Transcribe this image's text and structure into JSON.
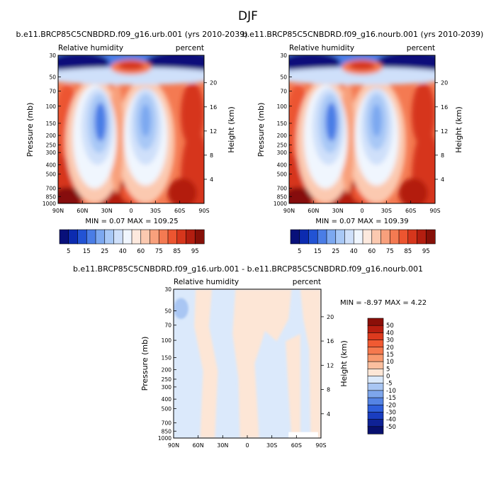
{
  "page": {
    "title": "DJF"
  },
  "chart_data": [
    {
      "type": "heatmap",
      "title": "b.e11.BRCP85C5CNBDRD.f09_g16.urb.001 (yrs 2010-2039)",
      "left_label": "Relative humidity",
      "right_label": "percent",
      "xlabel": "",
      "ylabel": "Pressure (mb)",
      "ylabel_right": "Height (km)",
      "x_ticks": [
        "90N",
        "60N",
        "30N",
        "0",
        "30S",
        "60S",
        "90S"
      ],
      "y_ticks": [
        "30",
        "50",
        "70",
        "100",
        "150",
        "200",
        "250",
        "300",
        "400",
        "500",
        "700",
        "850",
        "1000"
      ],
      "y_ticks_right": [
        "20",
        "16",
        "12",
        "8",
        "4"
      ],
      "stats": "MIN =   0.07  MAX = 109.25",
      "colorbar": {
        "labels": [
          "5",
          "15",
          "25",
          "40",
          "60",
          "75",
          "85",
          "95"
        ],
        "colors": [
          "#08107a",
          "#0c2bb0",
          "#2253d4",
          "#4a7de6",
          "#7ca8f0",
          "#a8c8f6",
          "#cfe0fa",
          "#f0f6fe",
          "#fde9de",
          "#fbc9b0",
          "#f8a07c",
          "#f47a52",
          "#ec5530",
          "#d6361c",
          "#b31e10",
          "#861008"
        ]
      }
    },
    {
      "type": "heatmap",
      "title": "b.e11.BRCP85C5CNBDRD.f09_g16.nourb.001 (yrs 2010-2039)",
      "left_label": "Relative humidity",
      "right_label": "percent",
      "xlabel": "",
      "ylabel": "Pressure (mb)",
      "ylabel_right": "Height (km)",
      "x_ticks": [
        "90N",
        "60N",
        "30N",
        "0",
        "30S",
        "60S",
        "90S"
      ],
      "y_ticks": [
        "30",
        "50",
        "70",
        "100",
        "150",
        "200",
        "250",
        "300",
        "400",
        "500",
        "700",
        "850",
        "1000"
      ],
      "y_ticks_right": [
        "20",
        "16",
        "12",
        "8",
        "4"
      ],
      "stats": "MIN =   0.07  MAX = 109.39",
      "colorbar": {
        "labels": [
          "5",
          "15",
          "25",
          "40",
          "60",
          "75",
          "85",
          "95"
        ],
        "colors": [
          "#08107a",
          "#0c2bb0",
          "#2253d4",
          "#4a7de6",
          "#7ca8f0",
          "#a8c8f6",
          "#cfe0fa",
          "#f0f6fe",
          "#fde9de",
          "#fbc9b0",
          "#f8a07c",
          "#f47a52",
          "#ec5530",
          "#d6361c",
          "#b31e10",
          "#861008"
        ]
      }
    },
    {
      "type": "heatmap",
      "title": "b.e11.BRCP85C5CNBDRD.f09_g16.urb.001 - b.e11.BRCP85C5CNBDRD.f09_g16.nourb.001",
      "left_label": "Relative humidity",
      "right_label": "percent",
      "xlabel": "",
      "ylabel": "Pressure (mb)",
      "ylabel_right": "Height (km)",
      "x_ticks": [
        "90N",
        "60N",
        "30N",
        "0",
        "30S",
        "60S",
        "90S"
      ],
      "y_ticks": [
        "30",
        "50",
        "70",
        "100",
        "150",
        "200",
        "250",
        "300",
        "400",
        "500",
        "700",
        "850",
        "1000"
      ],
      "y_ticks_right": [
        "20",
        "16",
        "12",
        "8",
        "4"
      ],
      "stats": "MIN =  -8.97  MAX =   4.22",
      "colorbar": {
        "labels": [
          "50",
          "40",
          "30",
          "20",
          "15",
          "10",
          "5",
          "0",
          "-5",
          "-10",
          "-15",
          "-20",
          "-30",
          "-40",
          "-50"
        ],
        "colors": [
          "#8b0f08",
          "#b81e10",
          "#dc3a1e",
          "#f05a32",
          "#f5794e",
          "#f8996e",
          "#fbbf9f",
          "#fde6d6",
          "#dbe9fb",
          "#a9c6f3",
          "#7ea6ec",
          "#5584e4",
          "#2f5fdb",
          "#1a3dc0",
          "#0f2296",
          "#08106e"
        ]
      }
    }
  ]
}
